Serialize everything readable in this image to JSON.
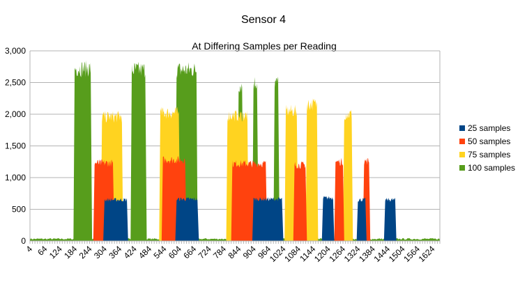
{
  "chart_data": {
    "type": "area",
    "title": "Sensor 4",
    "subtitle": "At Differing Samples per Reading",
    "xlabel": "",
    "ylabel": "",
    "x_tick_labels": [
      "4",
      "64",
      "124",
      "184",
      "244",
      "304",
      "364",
      "424",
      "484",
      "544",
      "604",
      "664",
      "724",
      "784",
      "844",
      "904",
      "964",
      "1024",
      "1084",
      "1144",
      "1204",
      "1264",
      "1324",
      "1384",
      "1444",
      "1504",
      "1564",
      "1624"
    ],
    "x_range": [
      4,
      1654
    ],
    "ylim": [
      0,
      3000
    ],
    "y_ticks": [
      0,
      500,
      1000,
      1500,
      2000,
      2500,
      3000
    ],
    "y_tick_labels": [
      "0",
      "500",
      "1,000",
      "1,500",
      "2,000",
      "2,500",
      "3,000"
    ],
    "grid": "horizontal",
    "legend_position": "right",
    "series": [
      {
        "name": "25 samples",
        "color": "#004586",
        "segments": [
          {
            "x_start": 304,
            "x_end": 394,
            "value": 650
          },
          {
            "x_start": 594,
            "x_end": 679,
            "value": 660
          },
          {
            "x_start": 904,
            "x_end": 1019,
            "value": 660
          },
          {
            "x_start": 1184,
            "x_end": 1224,
            "value": 680
          },
          {
            "x_start": 1324,
            "x_end": 1354,
            "value": 650
          },
          {
            "x_start": 1434,
            "x_end": 1474,
            "value": 650
          }
        ]
      },
      {
        "name": "50 samples",
        "color": "#ff420e",
        "segments": [
          {
            "x_start": 264,
            "x_end": 339,
            "value": 1230
          },
          {
            "x_start": 539,
            "x_end": 629,
            "value": 1280
          },
          {
            "x_start": 819,
            "x_end": 954,
            "value": 1220
          },
          {
            "x_start": 1069,
            "x_end": 1114,
            "value": 1200
          },
          {
            "x_start": 1234,
            "x_end": 1264,
            "value": 1250
          },
          {
            "x_start": 1349,
            "x_end": 1369,
            "value": 1260
          }
        ]
      },
      {
        "name": "75 samples",
        "color": "#ffd320",
        "segments": [
          {
            "x_start": 294,
            "x_end": 374,
            "value": 1960
          },
          {
            "x_start": 529,
            "x_end": 604,
            "value": 2020
          },
          {
            "x_start": 799,
            "x_end": 879,
            "value": 1980
          },
          {
            "x_start": 1034,
            "x_end": 1079,
            "value": 2050
          },
          {
            "x_start": 1119,
            "x_end": 1159,
            "value": 2160
          },
          {
            "x_start": 1269,
            "x_end": 1299,
            "value": 2000
          }
        ]
      },
      {
        "name": "100 samples",
        "color": "#579d1c",
        "segments": [
          {
            "x_start": 184,
            "x_end": 249,
            "value": 2720
          },
          {
            "x_start": 414,
            "x_end": 469,
            "value": 2700
          },
          {
            "x_start": 594,
            "x_end": 674,
            "value": 2700
          },
          {
            "x_start": 844,
            "x_end": 859,
            "value": 2450
          },
          {
            "x_start": 904,
            "x_end": 919,
            "value": 2500
          },
          {
            "x_start": 989,
            "x_end": 1004,
            "value": 2500
          }
        ]
      }
    ]
  }
}
